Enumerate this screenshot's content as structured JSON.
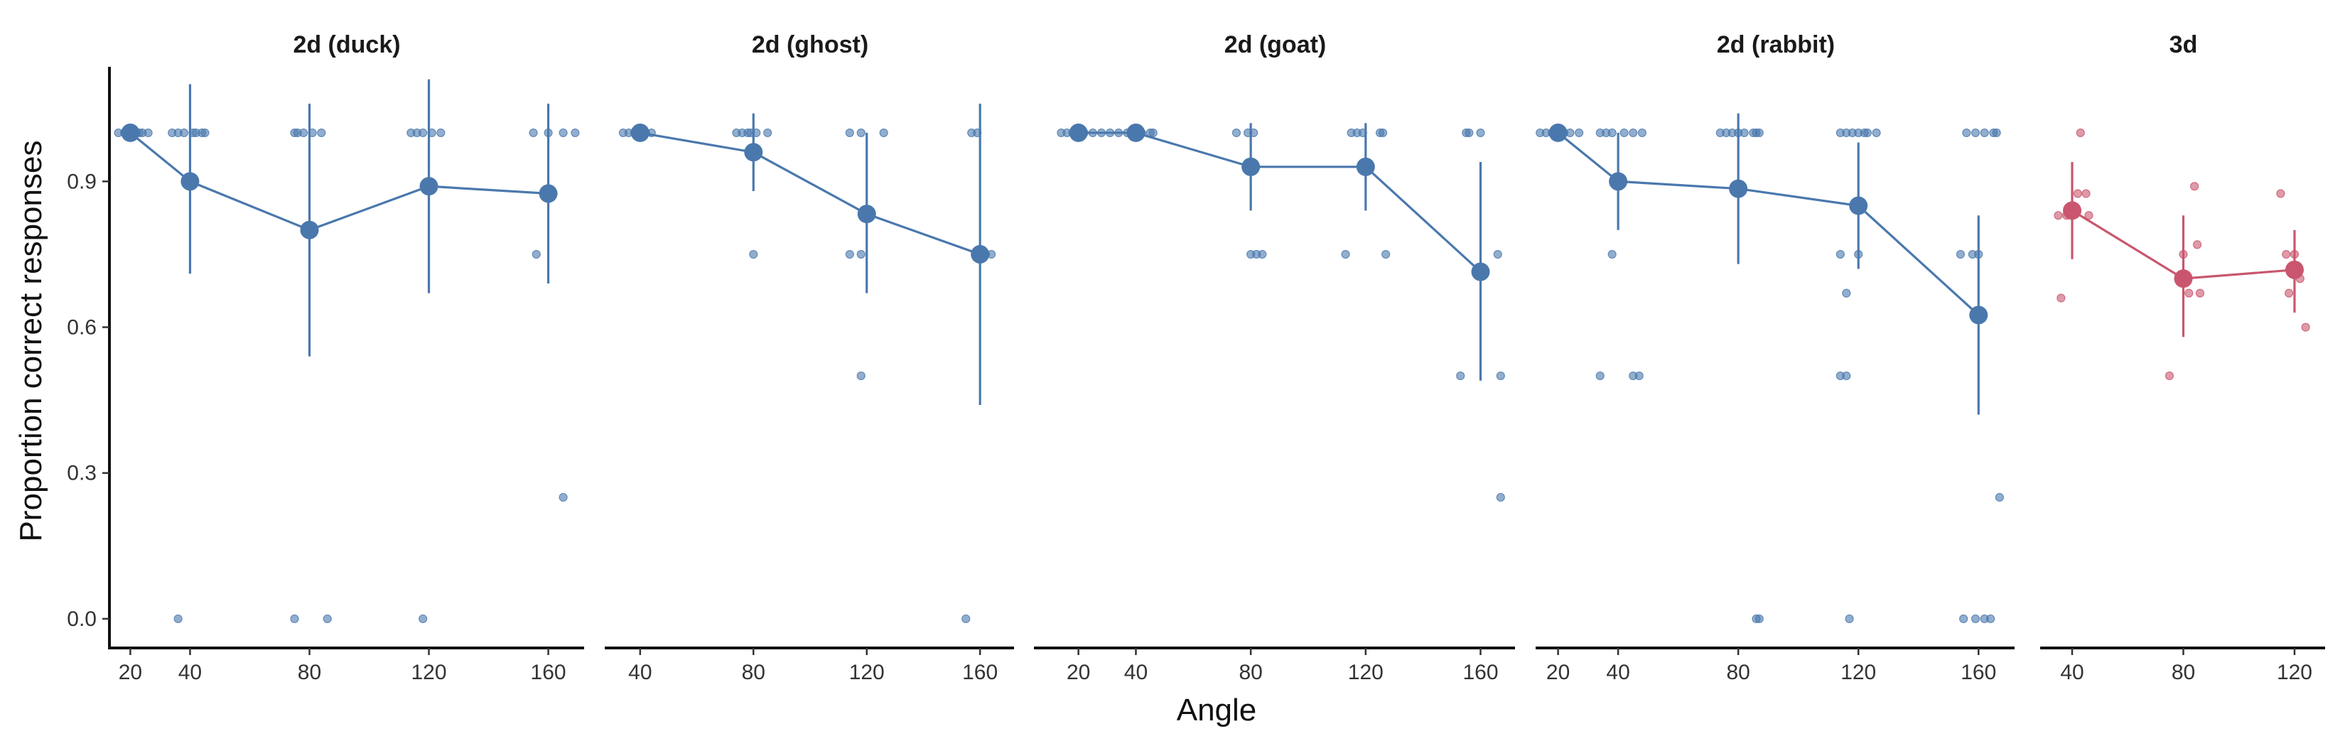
{
  "chart_data": {
    "type": "scatter",
    "xlabel": "Angle",
    "ylabel": "Proportion correct responses",
    "ylim": [
      -0.06,
      1.13
    ],
    "yticks": [
      0.0,
      0.3,
      0.6,
      0.9
    ],
    "ytick_labels": [
      "0.0",
      "0.3",
      "0.6",
      "0.9"
    ],
    "grid": false,
    "legend": "none",
    "colors": {
      "2d": "#4a78ad",
      "3d": "#c9566e"
    },
    "panels": [
      {
        "title": "2d (duck)",
        "color": "#4a78ad",
        "xlim": [
          13,
          172
        ],
        "xticks": [
          20,
          40,
          80,
          120,
          160
        ],
        "means": [
          {
            "x": 20,
            "y": 1.0,
            "lo": 1.0,
            "hi": 1.0
          },
          {
            "x": 40,
            "y": 0.9,
            "lo": 0.71,
            "hi": 1.1
          },
          {
            "x": 80,
            "y": 0.8,
            "lo": 0.54,
            "hi": 1.06
          },
          {
            "x": 120,
            "y": 0.89,
            "lo": 0.67,
            "hi": 1.11
          },
          {
            "x": 160,
            "y": 0.875,
            "lo": 0.69,
            "hi": 1.06
          }
        ],
        "points": [
          [
            16,
            1.0
          ],
          [
            18,
            1.0
          ],
          [
            19,
            1.0
          ],
          [
            21,
            1.0
          ],
          [
            22,
            1.0
          ],
          [
            23,
            1.0
          ],
          [
            24,
            1.0
          ],
          [
            26,
            1.0
          ],
          [
            34,
            1.0
          ],
          [
            36,
            1.0
          ],
          [
            38,
            1.0
          ],
          [
            41,
            1.0
          ],
          [
            42,
            1.0
          ],
          [
            44,
            1.0
          ],
          [
            45,
            1.0
          ],
          [
            36,
            0.0
          ],
          [
            75,
            1.0
          ],
          [
            76,
            1.0
          ],
          [
            78,
            1.0
          ],
          [
            81,
            1.0
          ],
          [
            84,
            1.0
          ],
          [
            75,
            0.0
          ],
          [
            86,
            0.0
          ],
          [
            114,
            1.0
          ],
          [
            116,
            1.0
          ],
          [
            118,
            1.0
          ],
          [
            121,
            1.0
          ],
          [
            124,
            1.0
          ],
          [
            118,
            0.0
          ],
          [
            155,
            1.0
          ],
          [
            160,
            1.0
          ],
          [
            165,
            1.0
          ],
          [
            169,
            1.0
          ],
          [
            156,
            0.75
          ],
          [
            165,
            0.25
          ]
        ]
      },
      {
        "title": "2d (ghost)",
        "color": "#4a78ad",
        "xlim": [
          28,
          172
        ],
        "xticks": [
          40,
          80,
          120,
          160
        ],
        "means": [
          {
            "x": 40,
            "y": 1.0,
            "lo": 1.0,
            "hi": 1.0
          },
          {
            "x": 80,
            "y": 0.96,
            "lo": 0.88,
            "hi": 1.04
          },
          {
            "x": 120,
            "y": 0.833,
            "lo": 0.67,
            "hi": 1.0
          },
          {
            "x": 160,
            "y": 0.75,
            "lo": 0.44,
            "hi": 1.06
          }
        ],
        "points": [
          [
            34,
            1.0
          ],
          [
            36,
            1.0
          ],
          [
            38,
            1.0
          ],
          [
            42,
            1.0
          ],
          [
            44,
            1.0
          ],
          [
            74,
            1.0
          ],
          [
            76,
            1.0
          ],
          [
            78,
            1.0
          ],
          [
            79,
            1.0
          ],
          [
            81,
            1.0
          ],
          [
            85,
            1.0
          ],
          [
            80,
            0.75
          ],
          [
            114,
            1.0
          ],
          [
            118,
            1.0
          ],
          [
            126,
            1.0
          ],
          [
            114,
            0.75
          ],
          [
            118,
            0.75
          ],
          [
            118,
            0.5
          ],
          [
            157,
            1.0
          ],
          [
            159,
            1.0
          ],
          [
            160,
            0.75
          ],
          [
            162,
            0.75
          ],
          [
            164,
            0.75
          ],
          [
            155,
            0.0
          ]
        ]
      },
      {
        "title": "2d (goat)",
        "color": "#4a78ad",
        "xlim": [
          5,
          172
        ],
        "xticks": [
          20,
          40,
          80,
          120,
          160
        ],
        "means": [
          {
            "x": 20,
            "y": 1.0,
            "lo": 1.0,
            "hi": 1.0
          },
          {
            "x": 40,
            "y": 1.0,
            "lo": 1.0,
            "hi": 1.0
          },
          {
            "x": 80,
            "y": 0.93,
            "lo": 0.84,
            "hi": 1.02
          },
          {
            "x": 120,
            "y": 0.93,
            "lo": 0.84,
            "hi": 1.02
          },
          {
            "x": 160,
            "y": 0.714,
            "lo": 0.49,
            "hi": 0.94
          }
        ],
        "points": [
          [
            14,
            1.0
          ],
          [
            16,
            1.0
          ],
          [
            18,
            1.0
          ],
          [
            22,
            1.0
          ],
          [
            25,
            1.0
          ],
          [
            28,
            1.0
          ],
          [
            31,
            1.0
          ],
          [
            34,
            1.0
          ],
          [
            37,
            1.0
          ],
          [
            42,
            1.0
          ],
          [
            45,
            1.0
          ],
          [
            46,
            1.0
          ],
          [
            75,
            1.0
          ],
          [
            79,
            1.0
          ],
          [
            81,
            1.0
          ],
          [
            80,
            0.75
          ],
          [
            82,
            0.75
          ],
          [
            84,
            0.75
          ],
          [
            115,
            1.0
          ],
          [
            117,
            1.0
          ],
          [
            119,
            1.0
          ],
          [
            125,
            1.0
          ],
          [
            126,
            1.0
          ],
          [
            113,
            0.75
          ],
          [
            127,
            0.75
          ],
          [
            155,
            1.0
          ],
          [
            156,
            1.0
          ],
          [
            160,
            1.0
          ],
          [
            166,
            0.75
          ],
          [
            153,
            0.5
          ],
          [
            167,
            0.5
          ],
          [
            167,
            0.25
          ]
        ]
      },
      {
        "title": "2d (rabbit)",
        "color": "#4a78ad",
        "xlim": [
          13,
          172
        ],
        "xticks": [
          20,
          40,
          80,
          120,
          160
        ],
        "means": [
          {
            "x": 20,
            "y": 1.0,
            "lo": 1.0,
            "hi": 1.0
          },
          {
            "x": 40,
            "y": 0.9,
            "lo": 0.8,
            "hi": 1.0
          },
          {
            "x": 80,
            "y": 0.885,
            "lo": 0.73,
            "hi": 1.04
          },
          {
            "x": 120,
            "y": 0.85,
            "lo": 0.72,
            "hi": 0.98
          },
          {
            "x": 160,
            "y": 0.625,
            "lo": 0.42,
            "hi": 0.83
          }
        ],
        "points": [
          [
            14,
            1.0
          ],
          [
            16,
            1.0
          ],
          [
            18,
            1.0
          ],
          [
            22,
            1.0
          ],
          [
            24,
            1.0
          ],
          [
            27,
            1.0
          ],
          [
            34,
            1.0
          ],
          [
            36,
            1.0
          ],
          [
            38,
            1.0
          ],
          [
            42,
            1.0
          ],
          [
            45,
            1.0
          ],
          [
            48,
            1.0
          ],
          [
            38,
            0.75
          ],
          [
            34,
            0.5
          ],
          [
            45,
            0.5
          ],
          [
            47,
            0.5
          ],
          [
            74,
            1.0
          ],
          [
            76,
            1.0
          ],
          [
            78,
            1.0
          ],
          [
            80,
            1.0
          ],
          [
            82,
            1.0
          ],
          [
            85,
            1.0
          ],
          [
            86,
            1.0
          ],
          [
            87,
            1.0
          ],
          [
            86,
            0.0
          ],
          [
            87,
            0.0
          ],
          [
            114,
            1.0
          ],
          [
            116,
            1.0
          ],
          [
            118,
            1.0
          ],
          [
            120,
            1.0
          ],
          [
            122,
            1.0
          ],
          [
            123,
            1.0
          ],
          [
            126,
            1.0
          ],
          [
            114,
            0.75
          ],
          [
            120,
            0.75
          ],
          [
            116,
            0.67
          ],
          [
            114,
            0.5
          ],
          [
            116,
            0.5
          ],
          [
            117,
            0.0
          ],
          [
            156,
            1.0
          ],
          [
            159,
            1.0
          ],
          [
            162,
            1.0
          ],
          [
            165,
            1.0
          ],
          [
            166,
            1.0
          ],
          [
            154,
            0.75
          ],
          [
            158,
            0.75
          ],
          [
            160,
            0.75
          ],
          [
            167,
            0.25
          ],
          [
            155,
            0.0
          ],
          [
            159,
            0.0
          ],
          [
            162,
            0.0
          ],
          [
            164,
            0.0
          ]
        ]
      },
      {
        "title": "3d",
        "color": "#c9566e",
        "xlim": [
          29,
          131
        ],
        "xticks": [
          40,
          80,
          120
        ],
        "means": [
          {
            "x": 40,
            "y": 0.84,
            "lo": 0.74,
            "hi": 0.94
          },
          {
            "x": 80,
            "y": 0.7,
            "lo": 0.58,
            "hi": 0.83
          },
          {
            "x": 120,
            "y": 0.718,
            "lo": 0.63,
            "hi": 0.8
          }
        ],
        "points": [
          [
            35,
            0.83
          ],
          [
            36,
            0.66
          ],
          [
            38,
            0.83
          ],
          [
            42,
            0.875
          ],
          [
            43,
            1.0
          ],
          [
            45,
            0.875
          ],
          [
            46,
            0.83
          ],
          [
            75,
            0.5
          ],
          [
            80,
            0.75
          ],
          [
            82,
            0.67
          ],
          [
            84,
            0.89
          ],
          [
            85,
            0.77
          ],
          [
            86,
            0.67
          ],
          [
            115,
            0.875
          ],
          [
            117,
            0.75
          ],
          [
            118,
            0.67
          ],
          [
            120,
            0.75
          ],
          [
            122,
            0.7
          ],
          [
            124,
            0.6
          ]
        ]
      }
    ]
  }
}
